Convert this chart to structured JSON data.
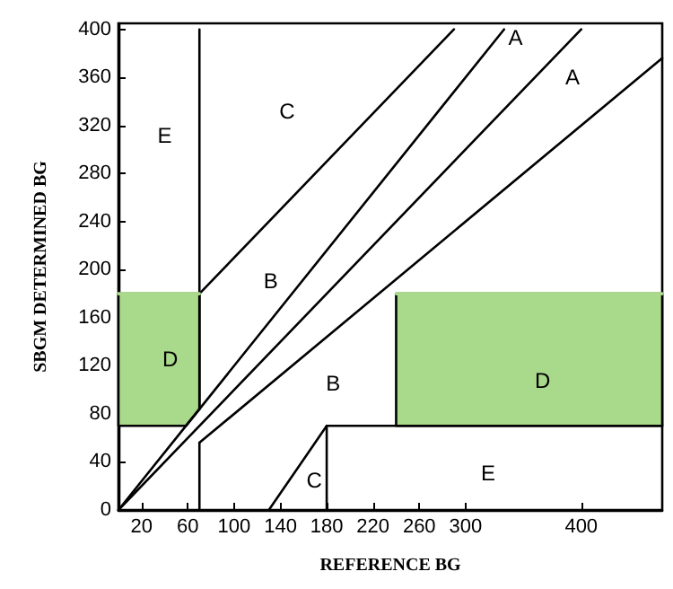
{
  "chart_data": {
    "type": "line",
    "xlabel": "REFERENCE BG",
    "ylabel": "SBGM DETERMINED BG",
    "xlim": [
      0,
      470
    ],
    "ylim": [
      0,
      405
    ],
    "xticks": [
      20,
      60,
      100,
      140,
      180,
      220,
      260,
      300,
      400
    ],
    "yticks": [
      0,
      40,
      80,
      120,
      160,
      200,
      240,
      280,
      320,
      360,
      400
    ],
    "grid": false,
    "marker": "none",
    "line_style": "solid",
    "series": [
      {
        "color": "#a9d98a",
        "x": [
          0,
          58.3,
          70
        ],
        "values": [
          180,
          180,
          180
        ],
        "lower": [
          70,
          70,
          84
        ],
        "upper": [
          180,
          180,
          180
        ]
      },
      {
        "color": "#a9d98a",
        "x": [
          240,
          470
        ],
        "values": [
          180,
          180
        ],
        "lower": [
          70,
          70
        ],
        "upper": [
          180,
          180
        ]
      },
      {
        "color": "#000000",
        "x": [
          70,
          290
        ],
        "values": [
          180,
          400
        ]
      },
      {
        "color": "#000000",
        "x": [
          0,
          58.3,
          70,
          333.3
        ],
        "values": [
          0,
          70,
          84,
          400
        ]
      },
      {
        "color": "#000000",
        "x": [
          0,
          400
        ],
        "values": [
          0,
          400
        ]
      },
      {
        "color": "#000000",
        "x": [
          70,
          470
        ],
        "values": [
          56,
          376
        ]
      },
      {
        "color": "#000000",
        "x": [
          70,
          70
        ],
        "values": [
          84,
          400
        ]
      },
      {
        "color": "#000000",
        "x": [
          70,
          70
        ],
        "values": [
          0,
          56
        ]
      },
      {
        "color": "#000000",
        "x": [
          130,
          180
        ],
        "values": [
          0,
          70
        ]
      },
      {
        "color": "#000000",
        "x": [
          180,
          180
        ],
        "values": [
          0,
          70
        ]
      },
      {
        "color": "#000000",
        "x": [
          180,
          470
        ],
        "values": [
          70,
          70
        ]
      }
    ],
    "annotations": [
      "E",
      "C",
      "B",
      "A",
      "A",
      "D",
      "B",
      "D",
      "C",
      "E"
    ]
  }
}
